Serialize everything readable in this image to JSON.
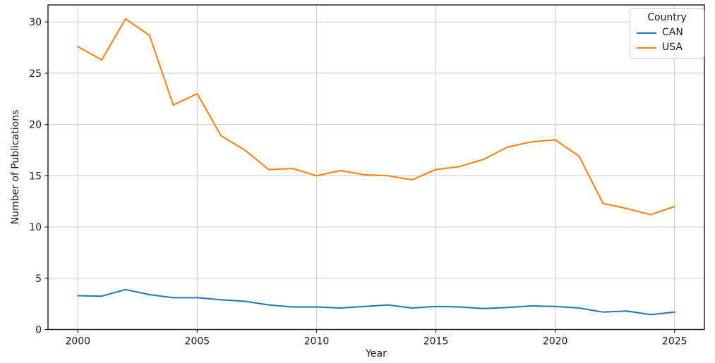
{
  "chart_data": {
    "type": "line",
    "title": "",
    "xlabel": "Year",
    "ylabel": "Number of Publications",
    "x": [
      2000,
      2001,
      2002,
      2003,
      2004,
      2005,
      2006,
      2007,
      2008,
      2009,
      2010,
      2011,
      2012,
      2013,
      2014,
      2015,
      2016,
      2017,
      2018,
      2019,
      2020,
      2021,
      2022,
      2023,
      2024,
      2025
    ],
    "series": [
      {
        "name": "CAN",
        "color": "#1f77b4",
        "values": [
          3.3,
          3.25,
          3.9,
          3.4,
          3.1,
          3.1,
          2.9,
          2.75,
          2.4,
          2.2,
          2.2,
          2.1,
          2.25,
          2.4,
          2.1,
          2.25,
          2.2,
          2.05,
          2.15,
          2.3,
          2.25,
          2.1,
          1.7,
          1.8,
          1.45,
          1.7
        ]
      },
      {
        "name": "USA",
        "color": "#ff7f0e",
        "values": [
          27.6,
          26.3,
          30.3,
          28.7,
          21.9,
          23.0,
          18.9,
          17.5,
          15.6,
          15.7,
          15.0,
          15.5,
          15.1,
          15.0,
          14.6,
          15.6,
          15.9,
          16.6,
          17.8,
          18.3,
          18.5,
          16.9,
          12.3,
          11.8,
          11.2,
          12.0
        ]
      }
    ],
    "xticks": [
      2000,
      2005,
      2010,
      2015,
      2020,
      2025
    ],
    "yticks": [
      0,
      5,
      10,
      15,
      20,
      25,
      30
    ],
    "xlim": [
      1998.75,
      2026.25
    ],
    "ylim": [
      0,
      31.66
    ],
    "grid": true,
    "grid_color": "#c9c9c9",
    "axis_color": "#262626",
    "legend": {
      "title": "Country",
      "position": "upper right",
      "entries": [
        "CAN",
        "USA"
      ]
    }
  }
}
